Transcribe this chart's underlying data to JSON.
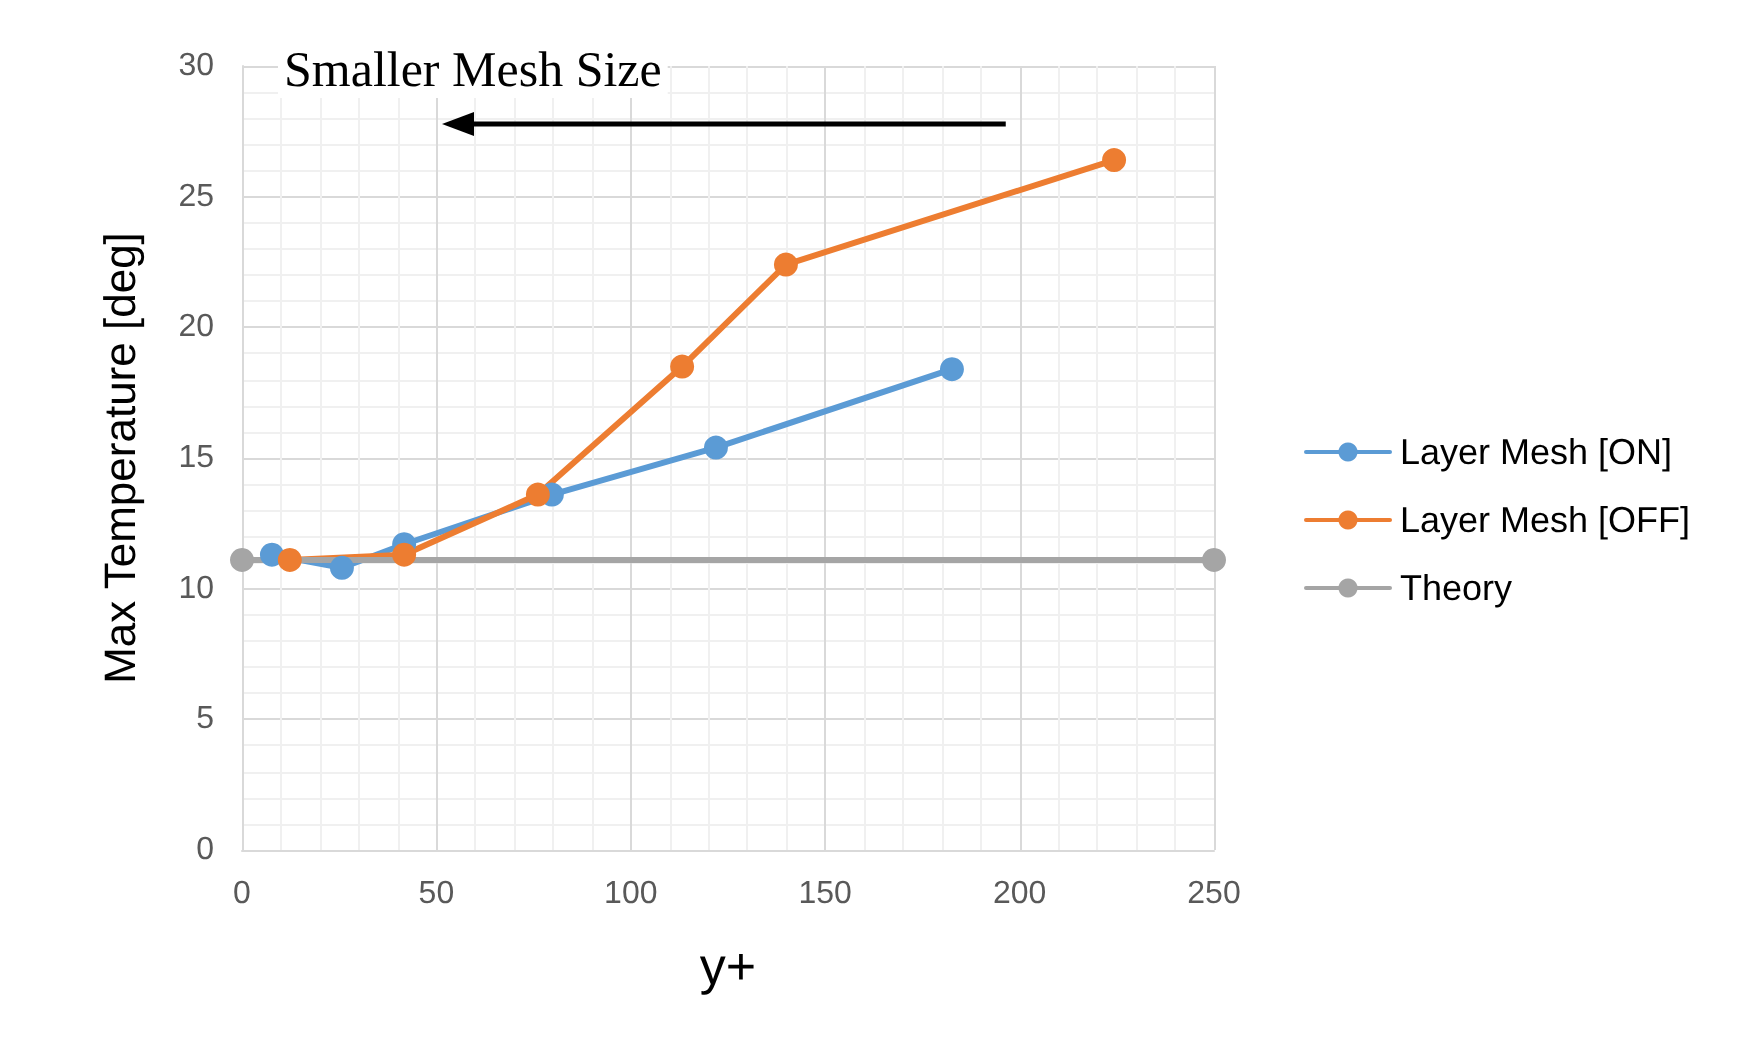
{
  "chart_data": {
    "type": "line",
    "xlabel": "y+",
    "ylabel": "Max Temperature [deg]",
    "xlim": [
      0,
      250
    ],
    "xticks": [
      0,
      50,
      100,
      150,
      200,
      250
    ],
    "ylim": [
      0,
      30
    ],
    "yticks": [
      0,
      5,
      10,
      15,
      20,
      25,
      30
    ],
    "grid": true,
    "legend": "right",
    "marker": "circle",
    "line_style": "solid",
    "annotations": [
      "Smaller Mesh Size"
    ],
    "series": [
      {
        "name": "Layer Mesh [ON]",
        "color": "#5b9bd5",
        "x": [
          7.7,
          25.7,
          41.7,
          79.7,
          121.9,
          182.6
        ],
        "values": [
          11.3,
          10.8,
          11.7,
          13.6,
          15.4,
          18.4
        ]
      },
      {
        "name": "Layer Mesh [OFF]",
        "color": "#ed7d31",
        "x": [
          12.3,
          41.7,
          76.1,
          113.2,
          139.9,
          224.3
        ],
        "values": [
          11.1,
          11.3,
          13.6,
          18.5,
          22.4,
          26.4
        ]
      },
      {
        "name": "Theory",
        "color": "#a5a5a5",
        "x": [
          0,
          250
        ],
        "values": [
          11.1,
          11.1
        ]
      }
    ]
  }
}
